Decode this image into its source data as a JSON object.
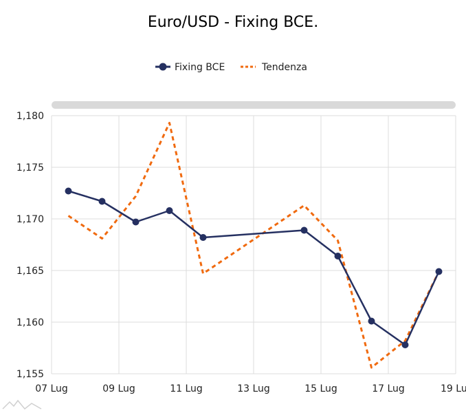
{
  "chart_data": {
    "type": "line",
    "title": "Euro/USD - Fixing BCE.",
    "xlabel": "",
    "ylabel": "",
    "ylim": [
      1.155,
      1.18
    ],
    "yticks": [
      1.155,
      1.16,
      1.165,
      1.17,
      1.175,
      1.18
    ],
    "ytick_labels": [
      "1,155",
      "1,160",
      "1,165",
      "1,170",
      "1,175",
      "1,180"
    ],
    "xlim": [
      "2025-07-07",
      "2025-07-19"
    ],
    "xticks": [
      "2025-07-07",
      "2025-07-09",
      "2025-07-11",
      "2025-07-13",
      "2025-07-15",
      "2025-07-17",
      "2025-07-19"
    ],
    "xtick_labels": [
      "07 Lug",
      "09 Lug",
      "11 Lug",
      "13 Lug",
      "15 Lug",
      "17 Lug",
      "19 Lu"
    ],
    "grid": true,
    "legend_position": "top-center",
    "series": [
      {
        "name": "Fixing BCE",
        "style": "solid-markers",
        "color": "#253061",
        "points": [
          {
            "x": "2025-07-07T12:00",
            "y": 1.1727
          },
          {
            "x": "2025-07-08T12:00",
            "y": 1.1717
          },
          {
            "x": "2025-07-09T12:00",
            "y": 1.1697
          },
          {
            "x": "2025-07-10T12:00",
            "y": 1.1708
          },
          {
            "x": "2025-07-11T12:00",
            "y": 1.1682
          },
          {
            "x": "2025-07-14T12:00",
            "y": 1.1689
          },
          {
            "x": "2025-07-15T12:00",
            "y": 1.1664
          },
          {
            "x": "2025-07-16T12:00",
            "y": 1.1601
          },
          {
            "x": "2025-07-17T12:00",
            "y": 1.1578
          },
          {
            "x": "2025-07-18T12:00",
            "y": 1.1649
          }
        ]
      },
      {
        "name": "Tendenza",
        "style": "dashed",
        "color": "#F06A0F",
        "points": [
          {
            "x": "2025-07-07T12:00",
            "y": 1.1703
          },
          {
            "x": "2025-07-08T12:00",
            "y": 1.1681
          },
          {
            "x": "2025-07-09T12:00",
            "y": 1.1722
          },
          {
            "x": "2025-07-10T12:00",
            "y": 1.1793
          },
          {
            "x": "2025-07-11T12:00",
            "y": 1.1647
          },
          {
            "x": "2025-07-12T12:00",
            "y": 1.1669
          },
          {
            "x": "2025-07-13T12:00",
            "y": 1.1691
          },
          {
            "x": "2025-07-14T12:00",
            "y": 1.1713
          },
          {
            "x": "2025-07-15T12:00",
            "y": 1.1679
          },
          {
            "x": "2025-07-16T12:00",
            "y": 1.1556
          },
          {
            "x": "2025-07-17T12:00",
            "y": 1.1582
          },
          {
            "x": "2025-07-18T12:00",
            "y": 1.1649
          }
        ]
      }
    ]
  },
  "colors": {
    "grid": "#dcdcdc",
    "scrollbar": "#d9d9d9",
    "axis_text": "#222222"
  },
  "icons": {
    "watermark": "mountain-logo-icon"
  }
}
